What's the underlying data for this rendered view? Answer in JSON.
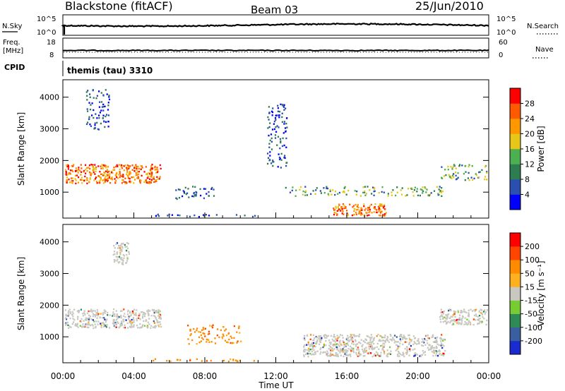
{
  "header": {
    "station": "Blackstone (fitACF)",
    "beam": "Beam 03",
    "date": "25/Jun/2010"
  },
  "strips": {
    "nsky_label": "N.Sky",
    "nsky_ticks": [
      "10^5",
      "10^0"
    ],
    "nsearch_label": "N.Search",
    "nsearch_ticks": [
      "10^5",
      "10^0"
    ],
    "freq_label": "Freq.",
    "freq_unit": "[MHz]",
    "freq_ticks": [
      "18",
      "8"
    ],
    "nave_label": "Nave",
    "nave_ticks": [
      "60",
      "0"
    ],
    "cpid_label": "CPID",
    "cpid_value": "themis (tau) 3310"
  },
  "chart_data": [
    {
      "type": "heatmap",
      "panel": "power",
      "ylabel": "Slant Range [km]",
      "yticks": [
        1000,
        2000,
        3000,
        4000
      ],
      "ylim": [
        180,
        4550
      ],
      "xlim_hours": [
        0,
        24
      ],
      "colorbar": {
        "label": "Power [dB]",
        "ticks": [
          "28",
          "24",
          "20",
          "16",
          "12",
          "8",
          "4"
        ],
        "colors": [
          "#0000ff",
          "#2a4fb0",
          "#2e7d50",
          "#4caf50",
          "#e6c619",
          "#ff9800",
          "#ff5a00",
          "#ff0000"
        ]
      },
      "regions": [
        {
          "t0": 0.1,
          "t1": 5.5,
          "r0": 1300,
          "r1": 1900,
          "level": "high"
        },
        {
          "t0": 1.3,
          "t1": 2.6,
          "r0": 3000,
          "r1": 4300,
          "level": "low"
        },
        {
          "t0": 6.3,
          "t1": 8.5,
          "r0": 800,
          "r1": 1200,
          "level": "low"
        },
        {
          "t0": 11.5,
          "t1": 12.6,
          "r0": 1800,
          "r1": 3800,
          "level": "low"
        },
        {
          "t0": 12.5,
          "t1": 21.5,
          "r0": 900,
          "r1": 1200,
          "level": "mid"
        },
        {
          "t0": 15.2,
          "t1": 18.2,
          "r0": 280,
          "r1": 650,
          "level": "high"
        },
        {
          "t0": 21.2,
          "t1": 24,
          "r0": 1400,
          "r1": 1900,
          "level": "mid"
        },
        {
          "t0": 5,
          "t1": 11,
          "r0": 180,
          "r1": 330,
          "level": "low"
        }
      ]
    },
    {
      "type": "heatmap",
      "panel": "velocity",
      "ylabel": "Slant Range [km]",
      "yticks": [
        1000,
        2000,
        3000,
        4000
      ],
      "ylim": [
        180,
        4550
      ],
      "xlabel": "Time UT",
      "xticks": [
        "00:00",
        "04:00",
        "08:00",
        "12:00",
        "16:00",
        "20:00",
        "00:00"
      ],
      "colorbar": {
        "label": "Velocity [m s⁻¹]",
        "ticks": [
          "200",
          "100",
          "50",
          "15",
          "-15",
          "-50",
          "-100",
          "-200"
        ],
        "colors": [
          "#1a2bd0",
          "#3a5fa0",
          "#2e8b57",
          "#77cc33",
          "#c8c8c0",
          "#ffb020",
          "#ff8c00",
          "#ff4500",
          "#ff0000"
        ]
      },
      "regions": [
        {
          "t0": 0.1,
          "t1": 5.5,
          "r0": 1300,
          "r1": 1900,
          "level": "gray"
        },
        {
          "t0": 2.8,
          "t1": 3.7,
          "r0": 3300,
          "r1": 4000,
          "level": "gray"
        },
        {
          "t0": 7.0,
          "t1": 10.0,
          "r0": 800,
          "r1": 1400,
          "level": "orange"
        },
        {
          "t0": 13.5,
          "t1": 21.5,
          "r0": 400,
          "r1": 1100,
          "level": "gray"
        },
        {
          "t0": 21.2,
          "t1": 24,
          "r0": 1400,
          "r1": 1900,
          "level": "gray"
        },
        {
          "t0": 5,
          "t1": 11,
          "r0": 180,
          "r1": 330,
          "level": "orange"
        }
      ]
    }
  ]
}
